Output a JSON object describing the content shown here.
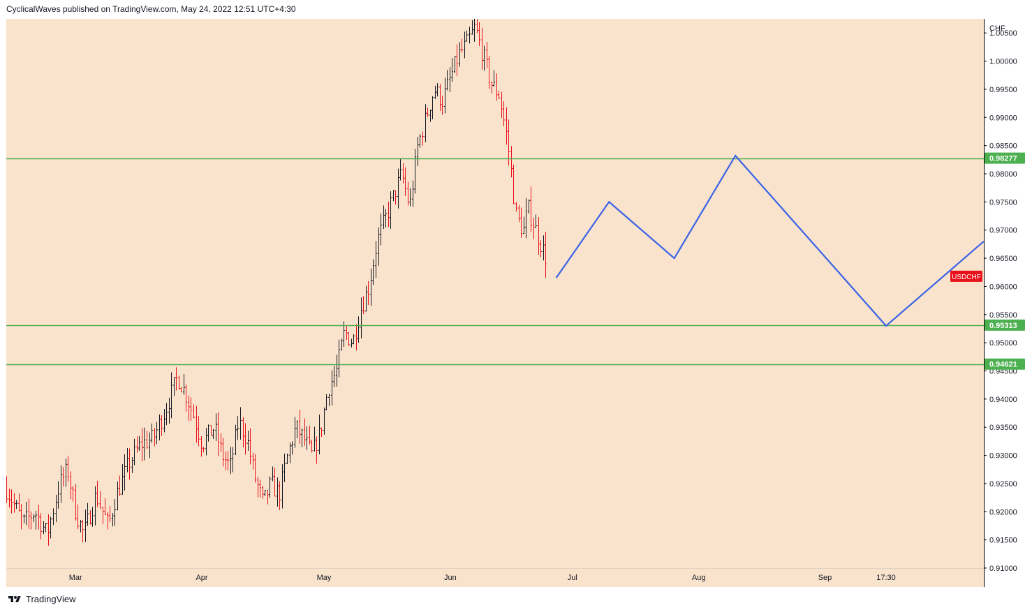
{
  "header": {
    "publish_line": "CyclicalWaves published on TradingView.com, May 24, 2022 12:51 UTC+4:30"
  },
  "footer": {
    "brand": "TradingView",
    "logo_icon": "tradingview-logo-icon"
  },
  "colors": {
    "plot_background": "#fae3cc",
    "axis_background": "#fae3cc",
    "bar_up": "#131722",
    "bar_down": "#e8101b",
    "projection_line": "#3a62e8",
    "level_line": "#4caf50",
    "level_label_bg": "#4caf50",
    "symbol_label_bg": "#e8101b",
    "axis_text": "#131722",
    "axis_border": "#000000"
  },
  "chart_data": {
    "type": "ohlc",
    "symbol": "USDCHF",
    "currency": "CHF",
    "ylim": [
      0.91,
      1.0075
    ],
    "y_ticks": [
      "0.91000",
      "0.91500",
      "0.92000",
      "0.92500",
      "0.93000",
      "0.93500",
      "0.94000",
      "0.94500",
      "0.95000",
      "0.95500",
      "0.96000",
      "0.96500",
      "0.97000",
      "0.97500",
      "0.98000",
      "0.98500",
      "0.99000",
      "0.99500",
      "1.00000",
      "1.00500"
    ],
    "x_ticks": [
      {
        "label": "Mar",
        "date": "2022-03-01"
      },
      {
        "label": "Apr",
        "date": "2022-04-01"
      },
      {
        "label": "May",
        "date": "2022-05-01"
      },
      {
        "label": "Jun",
        "date": "2022-06-01"
      },
      {
        "label": "Jul",
        "date": "2022-07-01"
      },
      {
        "label": "Aug",
        "date": "2022-08-01"
      },
      {
        "label": "Sep",
        "date": "2022-09-01"
      },
      {
        "label": "17:30",
        "date": "2022-09-16"
      }
    ],
    "xlim": [
      "2022-02-12",
      "2022-10-10"
    ],
    "price_path": [
      [
        "2022-02-12",
        0.924
      ],
      [
        "2022-02-16",
        0.918
      ],
      [
        "2022-02-19",
        0.92
      ],
      [
        "2022-02-22",
        0.916
      ],
      [
        "2022-02-25",
        0.925
      ],
      [
        "2022-02-27",
        0.9275
      ],
      [
        "2022-03-01",
        0.92
      ],
      [
        "2022-03-03",
        0.916
      ],
      [
        "2022-03-06",
        0.923
      ],
      [
        "2022-03-09",
        0.9175
      ],
      [
        "2022-03-11",
        0.923
      ],
      [
        "2022-03-14",
        0.9285
      ],
      [
        "2022-03-17",
        0.932
      ],
      [
        "2022-03-20",
        0.933
      ],
      [
        "2022-03-23",
        0.938
      ],
      [
        "2022-03-26",
        0.944
      ],
      [
        "2022-03-28",
        0.941
      ],
      [
        "2022-03-30",
        0.937
      ],
      [
        "2022-04-01",
        0.932
      ],
      [
        "2022-04-04",
        0.935
      ],
      [
        "2022-04-06",
        0.93
      ],
      [
        "2022-04-08",
        0.928
      ],
      [
        "2022-04-10",
        0.936
      ],
      [
        "2022-04-12",
        0.933
      ],
      [
        "2022-04-14",
        0.926
      ],
      [
        "2022-04-16",
        0.9215
      ],
      [
        "2022-04-18",
        0.925
      ],
      [
        "2022-04-20",
        0.923
      ],
      [
        "2022-04-22",
        0.93
      ],
      [
        "2022-04-24",
        0.935
      ],
      [
        "2022-04-26",
        0.933
      ],
      [
        "2022-04-28",
        0.93
      ],
      [
        "2022-04-30",
        0.934
      ],
      [
        "2022-05-02",
        0.942
      ],
      [
        "2022-05-04",
        0.945
      ],
      [
        "2022-05-06",
        0.952
      ],
      [
        "2022-05-08",
        0.95
      ],
      [
        "2022-05-10",
        0.956
      ],
      [
        "2022-05-12",
        0.96
      ],
      [
        "2022-05-14",
        0.968
      ],
      [
        "2022-05-16",
        0.972
      ],
      [
        "2022-05-18",
        0.976
      ],
      [
        "2022-05-20",
        0.98
      ],
      [
        "2022-05-22",
        0.974
      ],
      [
        "2022-05-24",
        0.985
      ],
      [
        "2022-05-26",
        0.99
      ],
      [
        "2022-05-28",
        0.995
      ],
      [
        "2022-05-30",
        0.993
      ],
      [
        "2022-06-01",
        0.997
      ],
      [
        "2022-06-03",
        1.001
      ],
      [
        "2022-06-05",
        1.003
      ],
      [
        "2022-06-07",
        1.006
      ],
      [
        "2022-06-09",
        1.001
      ],
      [
        "2022-06-11",
        0.996
      ],
      [
        "2022-06-13",
        0.994
      ],
      [
        "2022-06-15",
        0.986
      ],
      [
        "2022-06-16",
        0.98
      ],
      [
        "2022-06-17",
        0.973
      ],
      [
        "2022-06-18",
        0.971
      ],
      [
        "2022-06-19",
        0.97
      ],
      [
        "2022-06-20",
        0.974
      ],
      [
        "2022-06-21",
        0.972
      ],
      [
        "2022-06-22",
        0.97
      ],
      [
        "2022-06-23",
        0.968
      ],
      [
        "2022-06-24",
        0.966
      ],
      [
        "2022-06-25",
        0.964
      ]
    ],
    "projection": {
      "series": "projected path",
      "x": [
        "2022-06-27",
        "2022-07-10",
        "2022-07-26",
        "2022-08-10",
        "2022-09-16",
        "2022-10-10"
      ],
      "y": [
        0.9615,
        0.975,
        0.965,
        0.9832,
        0.953,
        0.968
      ]
    },
    "levels": [
      {
        "label": "0.98277",
        "value": 0.98277
      },
      {
        "label": "0.95313",
        "value": 0.95313
      },
      {
        "label": "0.94621",
        "value": 0.94621
      }
    ],
    "symbol_label": {
      "label": "USDCHF",
      "value": 0.9618
    },
    "grid": false,
    "legend": "none"
  }
}
